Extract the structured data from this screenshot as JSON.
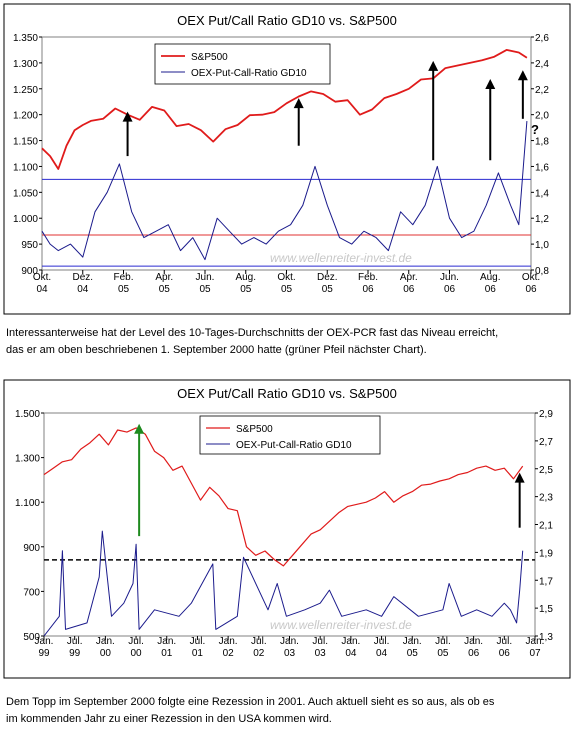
{
  "colors": {
    "sp500": "#e01b1b",
    "pcr": "#1b1b8c",
    "hline_blue": "#2a2ad0",
    "hline_red": "#e03030",
    "dashed": "#000000",
    "arrow_black": "#000000",
    "arrow_green": "#1e8a1e",
    "plot_bg": "#ffffff",
    "frame_bg": "#ffffff",
    "watermark": "#c8c8c8"
  },
  "captions": {
    "c1_line1": "Interessanterweise hat der Level des 10-Tages-Durchschnitts der OEX-PCR fast das Niveau erreicht,",
    "c1_line2": "das er am oben beschriebenen 1. September 2000 hatte (grüner Pfeil nächster Chart).",
    "c2_line1": "Dem Topp im September 2000 folgte eine Rezession in 2001. Auch aktuell sieht es so aus, als ob es",
    "c2_line2": "im kommenden Jahr zu einer Rezession in den USA kommen wird."
  },
  "chart_data": [
    {
      "type": "line",
      "title": "OEX Put/Call Ratio GD10 vs. S&P500",
      "watermark": "www.wellenreiter-invest.de",
      "legend_placement": "top-left",
      "grid": false,
      "x_labels": [
        [
          "Okt.",
          "04"
        ],
        [
          "Dez.",
          "04"
        ],
        [
          "Feb.",
          "05"
        ],
        [
          "Apr.",
          "05"
        ],
        [
          "Jun.",
          "05"
        ],
        [
          "Aug.",
          "05"
        ],
        [
          "Okt.",
          "05"
        ],
        [
          "Dez.",
          "05"
        ],
        [
          "Feb.",
          "06"
        ],
        [
          "Apr.",
          "06"
        ],
        [
          "Jun.",
          "06"
        ],
        [
          "Aug.",
          "06"
        ],
        [
          "Okt.",
          "06"
        ]
      ],
      "x_range": [
        "2004-10",
        "2006-10"
      ],
      "y_left": {
        "ticks": [
          "1.350",
          "1.300",
          "1.250",
          "1.200",
          "1.150",
          "1.100",
          "1.050",
          "1.000",
          "950",
          "900"
        ],
        "ylim": [
          900,
          1350
        ]
      },
      "y_right": {
        "ticks": [
          "2,6",
          "2,4",
          "2,2",
          "2,0",
          "1,8",
          "1,6",
          "1,4",
          "1,2",
          "1,0",
          "0,8"
        ],
        "ylim": [
          0.8,
          2.6
        ]
      },
      "series": [
        {
          "name": "S&P500",
          "axis": "left",
          "color": "#e01b1b",
          "width": 1.8,
          "x": [
            0,
            0.2,
            0.4,
            0.6,
            0.8,
            1.0,
            1.2,
            1.5,
            1.8,
            2.1,
            2.4,
            2.7,
            3.0,
            3.3,
            3.6,
            3.9,
            4.2,
            4.5,
            4.8,
            5.1,
            5.4,
            5.7,
            6.0,
            6.3,
            6.6,
            6.9,
            7.2,
            7.5,
            7.8,
            8.1,
            8.4,
            8.7,
            9.0,
            9.3,
            9.6,
            9.9,
            10.2,
            10.5,
            10.8,
            11.1,
            11.4,
            11.7,
            11.9
          ],
          "values": [
            1135,
            1120,
            1095,
            1140,
            1170,
            1180,
            1188,
            1192,
            1212,
            1200,
            1190,
            1215,
            1208,
            1178,
            1182,
            1170,
            1148,
            1172,
            1180,
            1199,
            1200,
            1205,
            1222,
            1235,
            1245,
            1240,
            1225,
            1228,
            1200,
            1210,
            1232,
            1240,
            1250,
            1268,
            1270,
            1290,
            1295,
            1300,
            1305,
            1312,
            1325,
            1320,
            1310
          ]
        },
        {
          "name": "OEX-Put-Call-Ratio GD10",
          "axis": "right",
          "color": "#1b1b8c",
          "width": 1.0,
          "x": [
            0,
            0.2,
            0.4,
            0.7,
            1.0,
            1.3,
            1.6,
            1.9,
            2.2,
            2.5,
            2.8,
            3.1,
            3.4,
            3.7,
            4.0,
            4.3,
            4.6,
            4.9,
            5.2,
            5.5,
            5.8,
            6.1,
            6.4,
            6.7,
            7.0,
            7.3,
            7.6,
            7.9,
            8.2,
            8.5,
            8.8,
            9.1,
            9.4,
            9.7,
            10.0,
            10.3,
            10.6,
            10.9,
            11.2,
            11.5,
            11.7,
            11.9
          ],
          "values": [
            1.1,
            1.0,
            0.95,
            1.0,
            0.9,
            1.25,
            1.4,
            1.62,
            1.25,
            1.05,
            1.1,
            1.15,
            0.95,
            1.05,
            0.88,
            1.2,
            1.1,
            1.0,
            1.05,
            1.0,
            1.1,
            1.15,
            1.3,
            1.6,
            1.3,
            1.05,
            1.0,
            1.1,
            1.05,
            0.95,
            1.25,
            1.15,
            1.3,
            1.6,
            1.2,
            1.05,
            1.1,
            1.3,
            1.55,
            1.3,
            1.15,
            1.95
          ]
        }
      ],
      "hlines": [
        {
          "axis": "right",
          "value": 1.5,
          "color": "#2a2ad0"
        },
        {
          "axis": "right",
          "value": 1.07,
          "color": "#e03030"
        },
        {
          "axis": "right",
          "value": 0.83,
          "color": "#2a2ad0"
        }
      ],
      "annotations": [
        {
          "type": "arrow",
          "color": "#000000",
          "x": 2.1,
          "from": 1120,
          "to": 1202
        },
        {
          "type": "arrow",
          "color": "#000000",
          "x": 6.3,
          "from": 1140,
          "to": 1228
        },
        {
          "type": "arrow",
          "color": "#000000",
          "x": 9.6,
          "from": 1112,
          "to": 1300
        },
        {
          "type": "arrow",
          "color": "#000000",
          "x": 11.0,
          "from": 1112,
          "to": 1265
        },
        {
          "type": "arrow",
          "color": "#000000",
          "x": 11.8,
          "from": 1192,
          "to": 1282
        },
        {
          "type": "text",
          "text": "?",
          "x": 12.0,
          "y": 1163
        }
      ]
    },
    {
      "type": "line",
      "title": "OEX Put/Call Ratio GD10 vs. S&P500",
      "watermark": "www.wellenreiter-invest.de",
      "legend_placement": "top-center",
      "grid": false,
      "x_labels": [
        [
          "Jan.",
          "99"
        ],
        [
          "Jul.",
          "99"
        ],
        [
          "Jan.",
          "00"
        ],
        [
          "Jul.",
          "00"
        ],
        [
          "Jan.",
          "01"
        ],
        [
          "Jul.",
          "01"
        ],
        [
          "Jan.",
          "02"
        ],
        [
          "Jul.",
          "02"
        ],
        [
          "Jan.",
          "03"
        ],
        [
          "Jul.",
          "03"
        ],
        [
          "Jan.",
          "04"
        ],
        [
          "Jul.",
          "04"
        ],
        [
          "Jan.",
          "05"
        ],
        [
          "Jul.",
          "05"
        ],
        [
          "Jan.",
          "06"
        ],
        [
          "Jul.",
          "06"
        ],
        [
          "Jan.",
          "07"
        ]
      ],
      "x_range": [
        "1999-01",
        "2007-01"
      ],
      "y_left": {
        "ticks": [
          "1.500",
          "1.300",
          "1.100",
          "900",
          "700",
          "500"
        ],
        "ylim": [
          500,
          1550
        ]
      },
      "y_right": {
        "ticks": [
          "2,9",
          "2,7",
          "2,5",
          "2,3",
          "2,1",
          "1,9",
          "1,7",
          "1,5",
          "1,3"
        ],
        "ylim": [
          1.3,
          3.0
        ]
      },
      "series": [
        {
          "name": "S&P500",
          "axis": "left",
          "color": "#e01b1b",
          "width": 1.2,
          "x": [
            0,
            0.3,
            0.6,
            0.9,
            1.2,
            1.5,
            1.8,
            2.1,
            2.4,
            2.7,
            3.0,
            3.3,
            3.6,
            3.9,
            4.2,
            4.5,
            4.8,
            5.1,
            5.4,
            5.7,
            6.0,
            6.3,
            6.6,
            6.9,
            7.2,
            7.5,
            7.8,
            8.1,
            8.4,
            8.7,
            9.0,
            9.3,
            9.6,
            9.9,
            10.2,
            10.5,
            10.8,
            11.1,
            11.4,
            11.7,
            12.0,
            12.3,
            12.6,
            12.9,
            13.2,
            13.5,
            13.8,
            14.1,
            14.4,
            14.7,
            15.0,
            15.3,
            15.6
          ],
          "values": [
            1260,
            1290,
            1320,
            1330,
            1380,
            1410,
            1450,
            1400,
            1470,
            1460,
            1480,
            1450,
            1370,
            1340,
            1280,
            1300,
            1220,
            1140,
            1200,
            1160,
            1100,
            1090,
            920,
            880,
            900,
            860,
            830,
            880,
            930,
            980,
            1000,
            1040,
            1080,
            1110,
            1120,
            1130,
            1150,
            1180,
            1130,
            1160,
            1180,
            1210,
            1215,
            1230,
            1240,
            1260,
            1270,
            1290,
            1300,
            1280,
            1290,
            1240,
            1300
          ]
        },
        {
          "name": "OEX-Put-Call-Ratio GD10",
          "axis": "right",
          "color": "#1b1b8c",
          "width": 1.0,
          "x": [
            0,
            0.5,
            0.6,
            0.7,
            1.4,
            1.8,
            1.9,
            2.2,
            2.6,
            2.9,
            3.0,
            3.1,
            3.6,
            4.4,
            4.8,
            5.5,
            5.6,
            6.3,
            6.5,
            7.3,
            7.6,
            7.9,
            8.5,
            9.0,
            9.3,
            9.7,
            10.5,
            11.0,
            11.4,
            12.2,
            13.0,
            13.2,
            13.6,
            14.1,
            14.6,
            15.0,
            15.2,
            15.4,
            15.5,
            15.6
          ],
          "values": [
            1.3,
            1.45,
            1.95,
            1.35,
            1.4,
            1.75,
            2.1,
            1.45,
            1.55,
            1.7,
            2.0,
            1.35,
            1.5,
            1.45,
            1.55,
            1.85,
            1.35,
            1.45,
            1.9,
            1.5,
            1.7,
            1.45,
            1.5,
            1.55,
            1.65,
            1.45,
            1.5,
            1.45,
            1.6,
            1.45,
            1.5,
            1.7,
            1.45,
            1.5,
            1.45,
            1.55,
            1.5,
            1.4,
            1.65,
            1.95
          ]
        }
      ],
      "hlines": [
        {
          "axis": "right",
          "value": 1.88,
          "color": "#000000",
          "dashed": true
        }
      ],
      "annotations": [
        {
          "type": "arrow",
          "color": "#1e8a1e",
          "x": 3.1,
          "from": 970,
          "to": 1490
        },
        {
          "type": "arrow",
          "color": "#000000",
          "x": 15.5,
          "from": 1010,
          "to": 1260
        }
      ]
    }
  ]
}
